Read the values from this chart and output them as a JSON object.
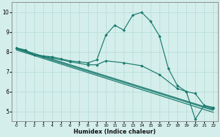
{
  "background_color": "#d4eeeb",
  "grid_color": "#b8ddd9",
  "line_color": "#1a7a6e",
  "xlabel": "Humidex (Indice chaleur)",
  "xlim": [
    -0.5,
    22.5
  ],
  "ylim": [
    4.5,
    10.5
  ],
  "xticks": [
    0,
    1,
    2,
    3,
    4,
    5,
    6,
    7,
    8,
    9,
    10,
    11,
    12,
    13,
    14,
    15,
    16,
    17,
    18,
    19,
    20,
    21,
    22
  ],
  "yticks": [
    5,
    6,
    7,
    8,
    9,
    10
  ],
  "lines": [
    {
      "x": [
        0,
        1,
        2,
        3,
        4,
        5,
        6,
        7,
        8,
        9,
        10,
        11,
        12,
        13,
        14,
        15,
        16,
        17,
        18,
        19,
        20,
        21,
        22
      ],
      "y": [
        8.2,
        8.1,
        7.85,
        7.8,
        7.75,
        7.65,
        7.55,
        7.5,
        7.45,
        7.6,
        8.85,
        9.35,
        9.1,
        9.85,
        10.0,
        9.55,
        8.8,
        7.15,
        6.3,
        6.0,
        4.6,
        5.3,
        5.2
      ],
      "marker": "D",
      "markersize": 2.0,
      "linewidth": 0.9,
      "has_marker": true
    },
    {
      "x": [
        0,
        2,
        4,
        6,
        8,
        9,
        10,
        12,
        14,
        16,
        18,
        19,
        20,
        21,
        22
      ],
      "y": [
        8.2,
        7.85,
        7.7,
        7.5,
        7.35,
        7.35,
        7.55,
        7.45,
        7.3,
        6.85,
        6.15,
        6.0,
        5.9,
        5.3,
        5.15
      ],
      "marker": "D",
      "markersize": 2.0,
      "linewidth": 0.9,
      "has_marker": true
    },
    {
      "x": [
        0,
        22
      ],
      "y": [
        8.2,
        5.1
      ],
      "marker": null,
      "markersize": 0,
      "linewidth": 0.9,
      "has_marker": false
    },
    {
      "x": [
        0,
        22
      ],
      "y": [
        8.15,
        5.05
      ],
      "marker": null,
      "markersize": 0,
      "linewidth": 0.9,
      "has_marker": false
    },
    {
      "x": [
        0,
        22
      ],
      "y": [
        8.1,
        4.95
      ],
      "marker": null,
      "markersize": 0,
      "linewidth": 0.9,
      "has_marker": false
    }
  ]
}
